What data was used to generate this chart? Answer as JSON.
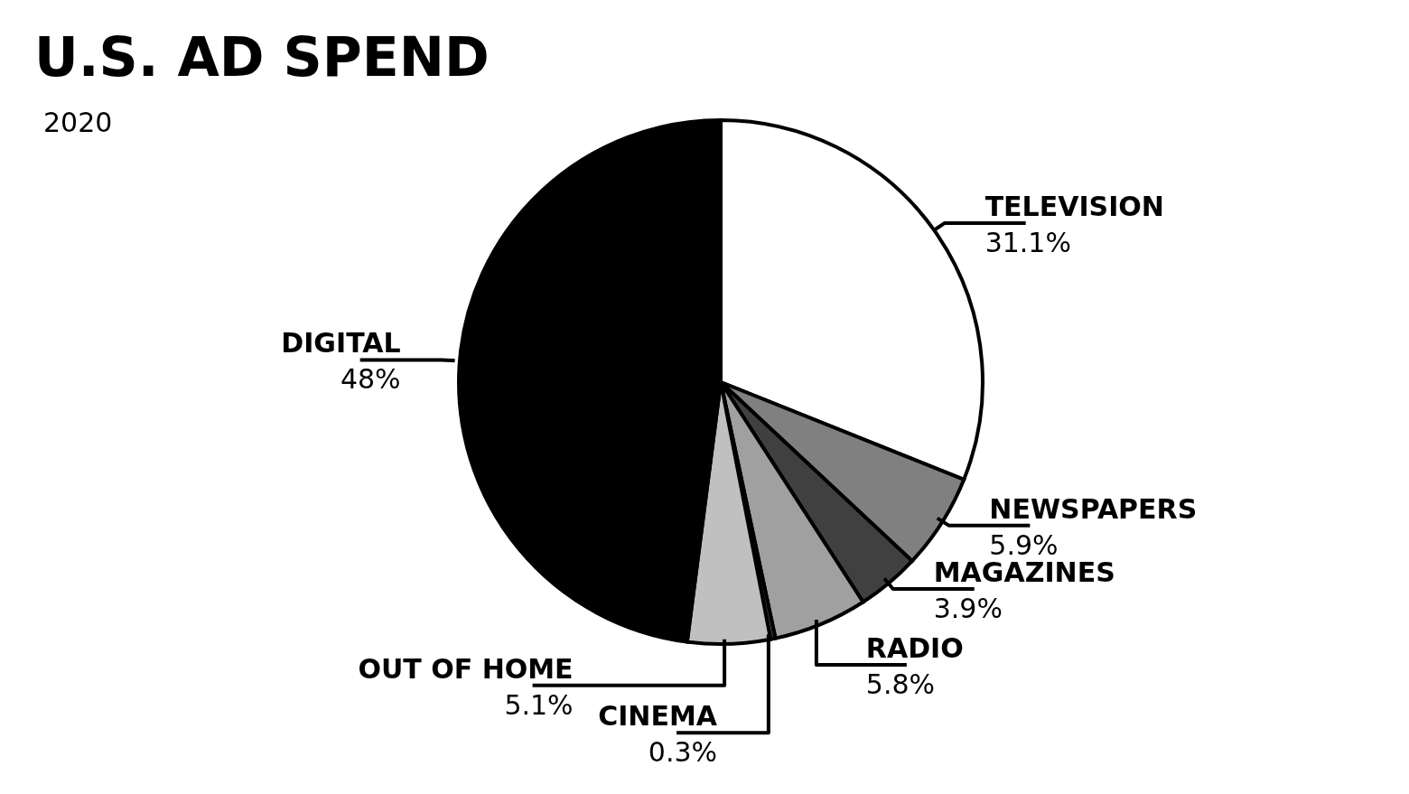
{
  "chart_data": {
    "type": "pie",
    "title": "U.S. AD SPEND",
    "subtitle": "2020",
    "categories": [
      "TELEVISION",
      "NEWSPAPERS",
      "MAGAZINES",
      "RADIO",
      "CINEMA",
      "OUT OF HOME",
      "DIGITAL"
    ],
    "values": [
      31.1,
      5.9,
      3.9,
      5.8,
      0.3,
      5.1,
      48
    ],
    "value_labels": [
      "31.1%",
      "5.9%",
      "3.9%",
      "5.8%",
      "0.3%",
      "5.1%",
      "48%"
    ],
    "colors": [
      "#ffffff",
      "#808080",
      "#404040",
      "#a0a0a0",
      "#404040",
      "#c0c0c0",
      "#000000"
    ],
    "legend": false
  }
}
